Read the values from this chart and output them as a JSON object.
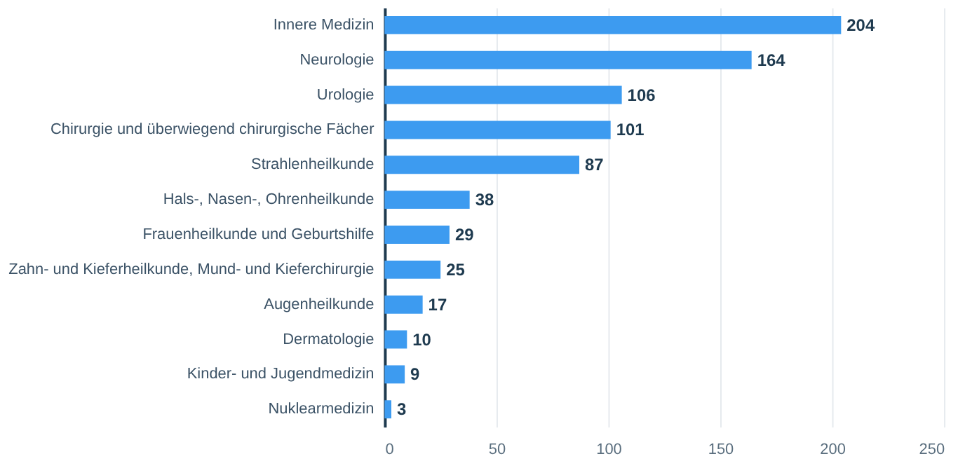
{
  "chart_data": {
    "type": "bar",
    "orientation": "horizontal",
    "categories": [
      "Innere Medizin",
      "Neurologie",
      "Urologie",
      "Chirurgie und überwiegend chirurgische Fächer",
      "Strahlenheilkunde",
      "Hals-, Nasen-, Ohrenheilkunde",
      "Frauenheilkunde und Geburtshilfe",
      "Zahn- und Kieferheilkunde, Mund- und Kieferchirurgie",
      "Augenheilkunde",
      "Dermatologie",
      "Kinder- und Jugendmedizin",
      "Nuklearmedizin"
    ],
    "values": [
      204,
      164,
      106,
      101,
      87,
      38,
      29,
      25,
      17,
      10,
      9,
      3
    ],
    "color": "#3d9bf0",
    "xlim": [
      0,
      250
    ],
    "xticks": [
      0,
      50,
      100,
      150,
      200,
      250
    ],
    "grid": "x",
    "data_labels": true
  }
}
